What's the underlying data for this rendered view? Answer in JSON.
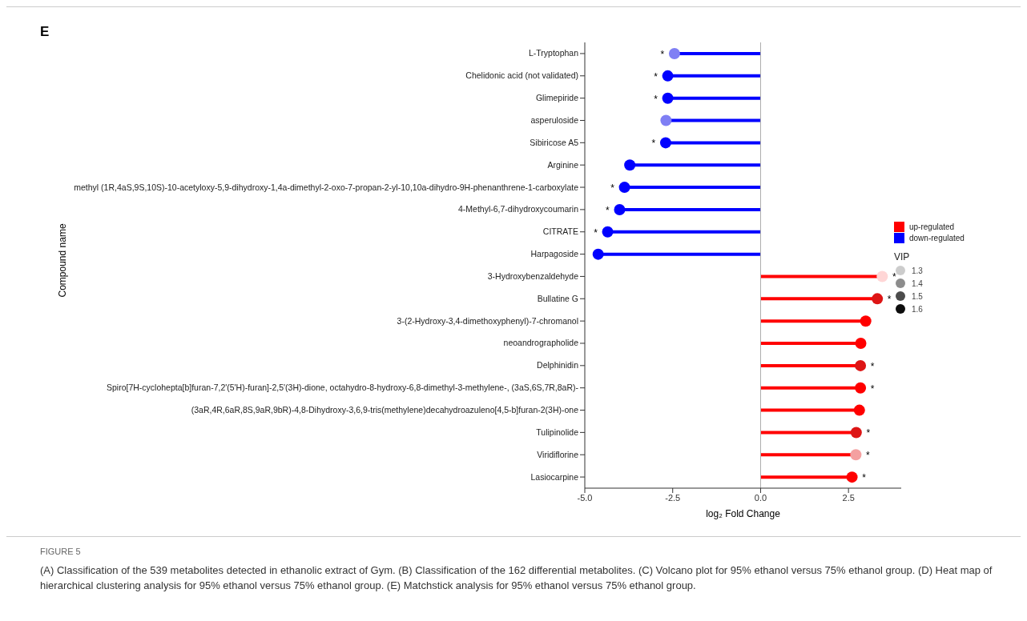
{
  "chart_data": {
    "type": "lollipop",
    "orientation": "horizontal",
    "title": "E",
    "categories": [
      "L-Tryptophan",
      "Chelidonic acid (not validated)",
      "Glimepiride",
      "asperuloside",
      "Sibiricose A5",
      "Arginine",
      "methyl (1R,4aS,9S,10S)-10-acetyloxy-5,9-dihydroxy-1,4a-dimethyl-2-oxo-7-propan-2-yl-10,10a-dihydro-9H-phenanthrene-1-carboxylate",
      "4-Methyl-6,7-dihydroxycoumarin",
      "CITRATE",
      "Harpagoside",
      "3-Hydroxybenzaldehyde",
      "Bullatine G",
      "3-(2-Hydroxy-3,4-dimethoxyphenyl)-7-chromanol",
      "neoandrographolide",
      "Delphinidin",
      "Spiro[7H-cyclohepta[b]furan-7,2'(5'H)-furan]-2,5'(3H)-dione, octahydro-8-hydroxy-6,8-dimethyl-3-methylene-, (3aS,6S,7R,8aR)-",
      "(3aR,4R,6aR,8S,9aR,9bR)-4,8-Dihydroxy-3,6,9-tris(methylene)decahydroazuleno[4,5-b]furan-2(3H)-one",
      "Tulipinolide",
      "Viridiflorine",
      "Lasiocarpine"
    ],
    "series": [
      {
        "name": "up-regulated",
        "color": "#ff0000",
        "values": [
          null,
          null,
          null,
          null,
          null,
          null,
          null,
          null,
          null,
          null,
          3.46,
          3.32,
          2.99,
          2.85,
          2.84,
          2.84,
          2.81,
          2.72,
          2.71,
          2.6
        ],
        "colors": [
          null,
          null,
          null,
          null,
          null,
          null,
          null,
          null,
          null,
          null,
          "#ffd6d6",
          "#dd1515",
          "#ff0000",
          "#ff0000",
          "#dd1515",
          "#ff0000",
          "#ff0000",
          "#dd1515",
          "#f4a0a0",
          "#ff0000"
        ]
      },
      {
        "name": "down-regulated",
        "color": "#0000ff",
        "values": [
          -2.45,
          -2.64,
          -2.64,
          -2.69,
          -2.7,
          -3.72,
          -3.87,
          -4.01,
          -4.35,
          -4.62,
          null,
          null,
          null,
          null,
          null,
          null,
          null,
          null,
          null,
          null
        ],
        "colors": [
          "#7f7ff4",
          "#0000ff",
          "#0000ff",
          "#7f7ff4",
          "#0000ff",
          "#0000ff",
          "#0000ff",
          "#0000ff",
          "#0000ff",
          "#0000ff",
          null,
          null,
          null,
          null,
          null,
          null,
          null,
          null,
          null,
          null
        ]
      }
    ],
    "xlabel": "log₂ Fold Change",
    "ylabel": "Compound name",
    "xlim": [
      -5,
      4
    ],
    "xticks": [
      {
        "value": -5,
        "label": "-5.0"
      },
      {
        "value": -2.5,
        "label": "-2.5"
      },
      {
        "value": 0,
        "label": "0.0"
      },
      {
        "value": 2.5,
        "label": "2.5"
      }
    ],
    "ref_lines": [
      {
        "axis": "x",
        "value": 0,
        "color": "#aaaaaa"
      }
    ],
    "legend": "right",
    "annotations": [
      {
        "text": "*",
        "x": -2.45,
        "y": "L-Tryptophan"
      },
      {
        "text": "*",
        "x": -2.64,
        "y": "Chelidonic acid (not validated)"
      },
      {
        "text": "*",
        "x": -2.64,
        "y": "Glimepiride"
      },
      {
        "text": "*",
        "x": -2.7,
        "y": "Sibiricose A5"
      },
      {
        "text": "*",
        "x": -3.87,
        "y": "methyl (1R,4aS,9S,10S)-10-acetyloxy-5,9-dihydroxy-1,4a-dimethyl-2-oxo-7-propan-2-yl-10,10a-dihydro-9H-phenanthrene-1-carboxylate"
      },
      {
        "text": "*",
        "x": -4.01,
        "y": "4-Methyl-6,7-dihydroxycoumarin"
      },
      {
        "text": "*",
        "x": -4.35,
        "y": "CITRATE"
      },
      {
        "text": "*",
        "x": 3.46,
        "y": "3-Hydroxybenzaldehyde"
      },
      {
        "text": "*",
        "x": 3.32,
        "y": "Bullatine G"
      },
      {
        "text": "*",
        "x": 2.84,
        "y": "Delphinidin"
      },
      {
        "text": "*",
        "x": 2.84,
        "y": "Spiro[7H-cyclohepta[b]furan-7,2'(5'H)-furan]-2,5'(3H)-dione, octahydro-8-hydroxy-6,8-dimethyl-3-methylene-, (3aS,6S,7R,8aR)-"
      },
      {
        "text": "*",
        "x": 2.72,
        "y": "Tulipinolide"
      },
      {
        "text": "*",
        "x": 2.71,
        "y": "Viridiflorine"
      },
      {
        "text": "*",
        "x": 2.6,
        "y": "Lasiocarpine"
      },
      "VIP",
      "1.3",
      "1.4",
      "1.5",
      "1.6",
      "FIGURE 5",
      "(A) Classification of the 539 metabolites detected in ethanolic extract of Gym. (B) Classification of the 162 differential metabolites. (C) Volcano plot for 95% ethanol versus 75% ethanol group. (D) Heat map of hierarchical clustering analysis for 95% ethanol versus 75% ethanol group. (E) Matchstick analysis for 95% ethanol versus 75% ethanol group."
    ]
  }
}
